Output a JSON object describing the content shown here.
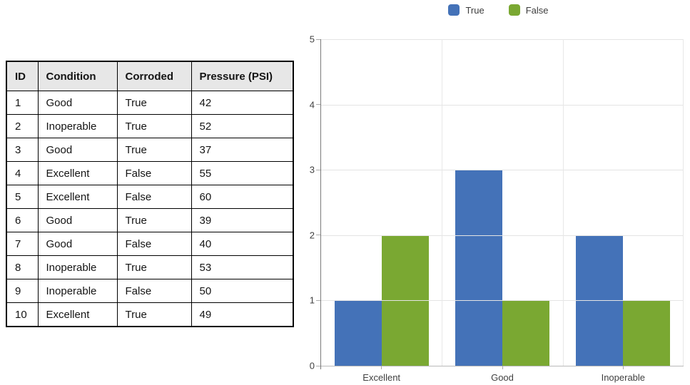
{
  "table": {
    "headers": [
      "ID",
      "Condition",
      "Corroded",
      "Pressure (PSI)"
    ],
    "rows": [
      [
        "1",
        "Good",
        "True",
        "42"
      ],
      [
        "2",
        "Inoperable",
        "True",
        "52"
      ],
      [
        "3",
        "Good",
        "True",
        "37"
      ],
      [
        "4",
        "Excellent",
        "False",
        "55"
      ],
      [
        "5",
        "Excellent",
        "False",
        "60"
      ],
      [
        "6",
        "Good",
        "True",
        "39"
      ],
      [
        "7",
        "Good",
        "False",
        "40"
      ],
      [
        "8",
        "Inoperable",
        "True",
        "53"
      ],
      [
        "9",
        "Inoperable",
        "False",
        "50"
      ],
      [
        "10",
        "Excellent",
        "True",
        "49"
      ]
    ]
  },
  "chart_data": {
    "type": "bar",
    "title": "",
    "categories": [
      "Excellent",
      "Good",
      "Inoperable"
    ],
    "series": [
      {
        "name": "True",
        "color": "#4472B8",
        "values": [
          1,
          3,
          2
        ]
      },
      {
        "name": "False",
        "color": "#7AA832",
        "values": [
          2,
          1,
          1
        ]
      }
    ],
    "xlabel": "",
    "ylabel": "",
    "ylim": [
      0,
      5
    ],
    "yticks": [
      0,
      1,
      2,
      3,
      4,
      5
    ],
    "grid": true,
    "legend_position": "top"
  }
}
